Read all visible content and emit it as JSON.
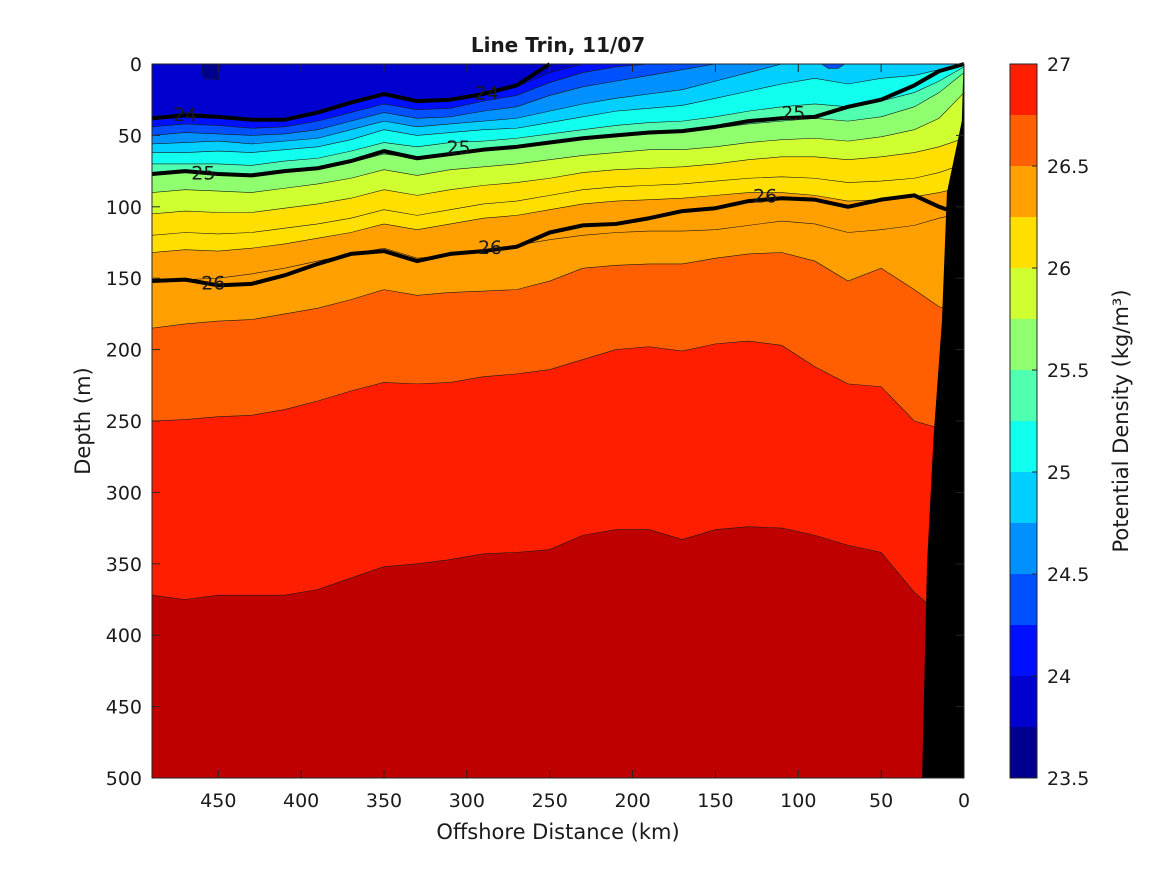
{
  "chart_data": {
    "type": "filled-contour",
    "title": "Line Trin, 11/07",
    "xlabel": "Offshore Distance (km)",
    "ylabel": "Depth (m)",
    "colorbar_label": "Potential Density (kg/m³)",
    "xlim": [
      490,
      0
    ],
    "ylim": [
      0,
      500
    ],
    "y_reversed": true,
    "x_reversed": true,
    "x_ticks": [
      450,
      400,
      350,
      300,
      250,
      200,
      150,
      100,
      50,
      0
    ],
    "y_ticks": [
      0,
      50,
      100,
      150,
      200,
      250,
      300,
      350,
      400,
      450,
      500
    ],
    "colorbar_ticks": [
      27,
      26.5,
      26,
      25.5,
      25,
      24.5,
      24,
      23.5
    ],
    "colorbar_range": [
      23.5,
      27
    ],
    "levels": [
      23.5,
      23.75,
      24,
      24.25,
      24.5,
      24.75,
      25,
      25.25,
      25.5,
      25.75,
      26,
      26.25,
      26.5,
      26.75,
      27
    ],
    "colors": [
      "#00008f",
      "#0000cf",
      "#0010ff",
      "#0050ff",
      "#0090ff",
      "#00cfff",
      "#10ffef",
      "#50ffaf",
      "#8fff70",
      "#cfff30",
      "#ffdf00",
      "#ff9f00",
      "#ff5f00",
      "#ff1f00",
      "#bf0000"
    ],
    "contour_x": [
      490,
      470,
      450,
      430,
      410,
      390,
      370,
      350,
      330,
      310,
      290,
      270,
      250,
      230,
      210,
      190,
      170,
      150,
      130,
      110,
      90,
      70,
      50,
      30,
      15,
      0
    ],
    "isopycnal_depths": {
      "24": [
        38,
        34,
        36,
        38,
        38,
        34,
        28,
        21,
        25,
        24,
        20,
        16,
        6,
        0,
        0,
        0,
        0,
        0,
        0,
        0,
        0,
        0,
        0,
        0,
        0,
        0
      ],
      "24.25": [
        44,
        42,
        43,
        45,
        44,
        40,
        34,
        28,
        32,
        31,
        26,
        22,
        13,
        6,
        2,
        0,
        0,
        0,
        0,
        0,
        0,
        0,
        0,
        0,
        0,
        0
      ],
      "24.5": [
        50,
        48,
        49,
        50,
        49,
        46,
        40,
        34,
        38,
        37,
        33,
        30,
        22,
        16,
        12,
        8,
        4,
        0,
        0,
        0,
        0,
        0,
        0,
        0,
        0,
        0
      ],
      "24.75": [
        56,
        55,
        54,
        56,
        54,
        52,
        46,
        40,
        44,
        42,
        40,
        38,
        33,
        28,
        24,
        21,
        18,
        12,
        6,
        0,
        0,
        0,
        0,
        0,
        0,
        0
      ],
      "25": [
        62,
        62,
        61,
        62,
        60,
        58,
        53,
        46,
        50,
        48,
        46,
        45,
        41,
        37,
        33,
        31,
        29,
        24,
        19,
        14,
        10,
        14,
        10,
        8,
        4,
        0
      ],
      "25.25": [
        70,
        70,
        70,
        71,
        68,
        66,
        61,
        55,
        58,
        55,
        54,
        52,
        49,
        46,
        43,
        41,
        40,
        37,
        33,
        30,
        28,
        30,
        26,
        20,
        12,
        2
      ],
      "25.5": [
        78,
        76,
        78,
        78,
        75,
        73,
        69,
        63,
        66,
        63,
        61,
        59,
        56,
        52,
        50,
        48,
        48,
        45,
        42,
        40,
        38,
        40,
        37,
        30,
        20,
        6
      ],
      "25.75": [
        90,
        88,
        89,
        90,
        87,
        84,
        80,
        74,
        78,
        74,
        72,
        70,
        67,
        64,
        62,
        60,
        60,
        58,
        55,
        53,
        52,
        54,
        51,
        46,
        38,
        20
      ],
      "26": [
        105,
        103,
        104,
        104,
        101,
        98,
        94,
        88,
        92,
        88,
        85,
        83,
        80,
        76,
        74,
        73,
        72,
        70,
        67,
        65,
        65,
        67,
        65,
        62,
        58,
        52
      ],
      "26.25": [
        120,
        118,
        119,
        118,
        115,
        112,
        108,
        102,
        106,
        102,
        98,
        96,
        92,
        88,
        86,
        85,
        84,
        82,
        80,
        79,
        80,
        83,
        82,
        80,
        76,
        70
      ],
      "26.5": [
        132,
        130,
        131,
        129,
        126,
        122,
        118,
        112,
        116,
        112,
        108,
        106,
        102,
        98,
        96,
        95,
        94,
        92,
        90,
        90,
        92,
        96,
        95,
        93,
        90,
        86
      ],
      "26.75": [
        152,
        151,
        150,
        147,
        143,
        138,
        133,
        129,
        136,
        134,
        131,
        127,
        123,
        120,
        118,
        117,
        117,
        116,
        113,
        110,
        112,
        118,
        116,
        113,
        108,
        104
      ],
      "27": [
        185,
        182,
        180,
        179,
        175,
        171,
        165,
        158,
        162,
        160,
        159,
        158,
        152,
        143,
        141,
        140,
        140,
        136,
        133,
        132,
        138,
        152,
        143,
        158,
        170,
        175
      ]
    },
    "deep_layers": {
      "26.5_to_26.75": [
        250,
        249,
        247,
        246,
        242,
        236,
        229,
        223,
        224,
        223,
        219,
        217,
        214,
        207,
        200,
        198,
        201,
        196,
        194,
        197,
        212,
        224,
        226,
        250,
        255,
        255
      ],
      "26.75_to_27": [
        372,
        375,
        372,
        372,
        372,
        368,
        360,
        352,
        350,
        347,
        343,
        342,
        340,
        330,
        326,
        326,
        333,
        326,
        324,
        325,
        330,
        337,
        342,
        370,
        385,
        385
      ]
    },
    "labeled_contours": [
      {
        "label": "24",
        "x": 470,
        "y": 35
      },
      {
        "label": "24",
        "x": 288,
        "y": 20
      },
      {
        "label": "25",
        "x": 103,
        "y": 34
      },
      {
        "label": "25",
        "x": 305,
        "y": 58
      },
      {
        "label": "25",
        "x": 459,
        "y": 76
      },
      {
        "label": "26",
        "x": 120,
        "y": 92
      },
      {
        "label": "26",
        "x": 286,
        "y": 128
      },
      {
        "label": "26",
        "x": 453,
        "y": 153
      }
    ],
    "bold_isopycnals": {
      "24": [
        38,
        36,
        37,
        39,
        39,
        34,
        27,
        21,
        26,
        25,
        21,
        15,
        0,
        null,
        null,
        null,
        null,
        null,
        null,
        null,
        null,
        null,
        null,
        null,
        null,
        null
      ],
      "25": [
        77,
        75,
        77,
        78,
        75,
        73,
        68,
        61,
        66,
        63,
        60,
        58,
        55,
        52,
        50,
        48,
        47,
        44,
        40,
        38,
        37,
        30,
        25,
        15,
        5,
        0
      ],
      "26": [
        152,
        151,
        155,
        154,
        148,
        140,
        133,
        131,
        138,
        133,
        131,
        128,
        118,
        113,
        112,
        108,
        103,
        101,
        96,
        94,
        95,
        100,
        95,
        92,
        100,
        106
      ]
    },
    "land_polygon_x": [
      0,
      1,
      10,
      13,
      18,
      22,
      25,
      0
    ],
    "land_polygon_y": [
      0,
      40,
      90,
      180,
      260,
      350,
      500,
      500
    ]
  }
}
